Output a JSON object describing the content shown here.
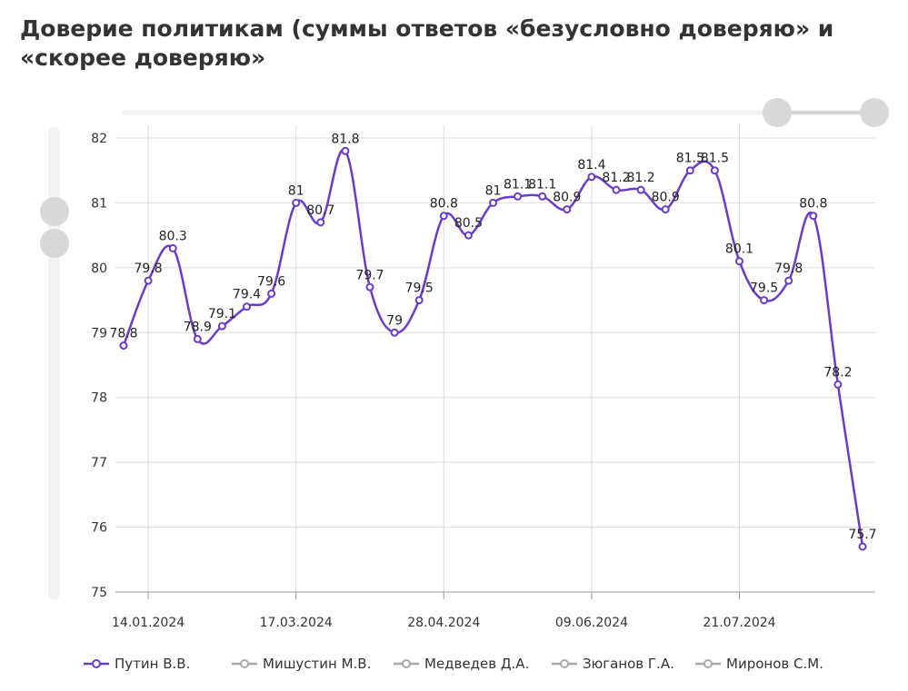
{
  "chart_data": {
    "type": "line",
    "title": "Доверие политикам (суммы ответов «безусловно доверяю» и «скорее доверяю»",
    "categories": [
      null,
      "14.01.2024",
      null,
      null,
      null,
      null,
      null,
      "17.03.2024",
      null,
      null,
      null,
      null,
      null,
      "28.04.2024",
      null,
      null,
      null,
      null,
      null,
      "09.06.2024",
      null,
      null,
      null,
      null,
      null,
      "21.07.2024",
      null,
      null,
      null,
      null,
      null
    ],
    "series": [
      {
        "name": "Путин В.В.",
        "color": "#6a3cc8",
        "values": [
          78.8,
          79.8,
          80.3,
          78.9,
          79.1,
          79.4,
          79.6,
          81,
          80.7,
          81.8,
          79.7,
          79,
          79.5,
          80.8,
          80.5,
          81,
          81.1,
          81.1,
          80.9,
          81.4,
          81.2,
          81.2,
          80.9,
          81.5,
          81.5,
          80.1,
          79.5,
          79.8,
          80.8,
          78.2,
          75.7
        ]
      },
      {
        "name": "Мишустин М.В.",
        "color": "#a0a0a0",
        "hidden": true
      },
      {
        "name": "Медведев Д.А.",
        "color": "#a0a0a0",
        "hidden": true
      },
      {
        "name": "Зюганов Г.А.",
        "color": "#a0a0a0",
        "hidden": true
      },
      {
        "name": "Миронов С.М.",
        "color": "#a0a0a0",
        "hidden": true
      }
    ],
    "ylim": [
      75,
      82
    ],
    "yticks": [
      75,
      76,
      77,
      78,
      79,
      80,
      81,
      82
    ],
    "grid": true
  }
}
